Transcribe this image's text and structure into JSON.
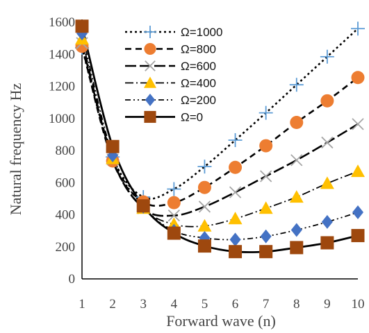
{
  "chart_data": {
    "type": "line",
    "title": "",
    "xlabel": "Forward wave (n)",
    "ylabel": "Natural frequency Hz",
    "x": [
      1,
      2,
      3,
      4,
      5,
      6,
      7,
      8,
      9,
      10
    ],
    "xlim": [
      1,
      10
    ],
    "ylim": [
      0,
      1600
    ],
    "xticks": [
      "1",
      "2",
      "3",
      "4",
      "5",
      "6",
      "7",
      "8",
      "9",
      "10"
    ],
    "yticks": [
      "0",
      "200",
      "400",
      "600",
      "800",
      "1000",
      "1200",
      "1400",
      "1600"
    ],
    "ytick_values": [
      0,
      200,
      400,
      600,
      800,
      1000,
      1200,
      1400,
      1600
    ],
    "grid": false,
    "legend_position": "top-center",
    "series": [
      {
        "name": "Ω=1000",
        "values": [
          1440,
          760,
          510,
          560,
          700,
          865,
          1035,
          1210,
          1385,
          1560
        ],
        "color": "#5B9BD5",
        "marker": "plus",
        "dash": "3,4",
        "line_width": 2.6
      },
      {
        "name": "Ω=800",
        "values": [
          1450,
          735,
          480,
          475,
          570,
          695,
          830,
          975,
          1110,
          1255
        ],
        "color": "#ED7D31",
        "marker": "circle",
        "dash": "9,6",
        "line_width": 2.6
      },
      {
        "name": "Ω=600",
        "values": [
          1470,
          745,
          440,
          395,
          450,
          540,
          640,
          740,
          850,
          965
        ],
        "color": "#A5A5A5",
        "marker": "cross",
        "dash": "16,5",
        "line_width": 2.6
      },
      {
        "name": "Ω=400",
        "values": [
          1495,
          750,
          440,
          340,
          330,
          375,
          440,
          510,
          595,
          670
        ],
        "color": "#FFC000",
        "marker": "triangle",
        "dash": "12,4,2,4",
        "line_width": 1.8
      },
      {
        "name": "Ω=200",
        "values": [
          1530,
          770,
          450,
          300,
          255,
          245,
          265,
          305,
          355,
          415
        ],
        "color": "#4472C4",
        "marker": "diamond",
        "dash": "8,4,2,4,2,4",
        "line_width": 1.8
      },
      {
        "name": "Ω=0",
        "values": [
          1575,
          825,
          455,
          285,
          205,
          170,
          170,
          195,
          225,
          270
        ],
        "color": "#9E480E",
        "marker": "square",
        "dash": "",
        "line_width": 2.8
      }
    ]
  }
}
